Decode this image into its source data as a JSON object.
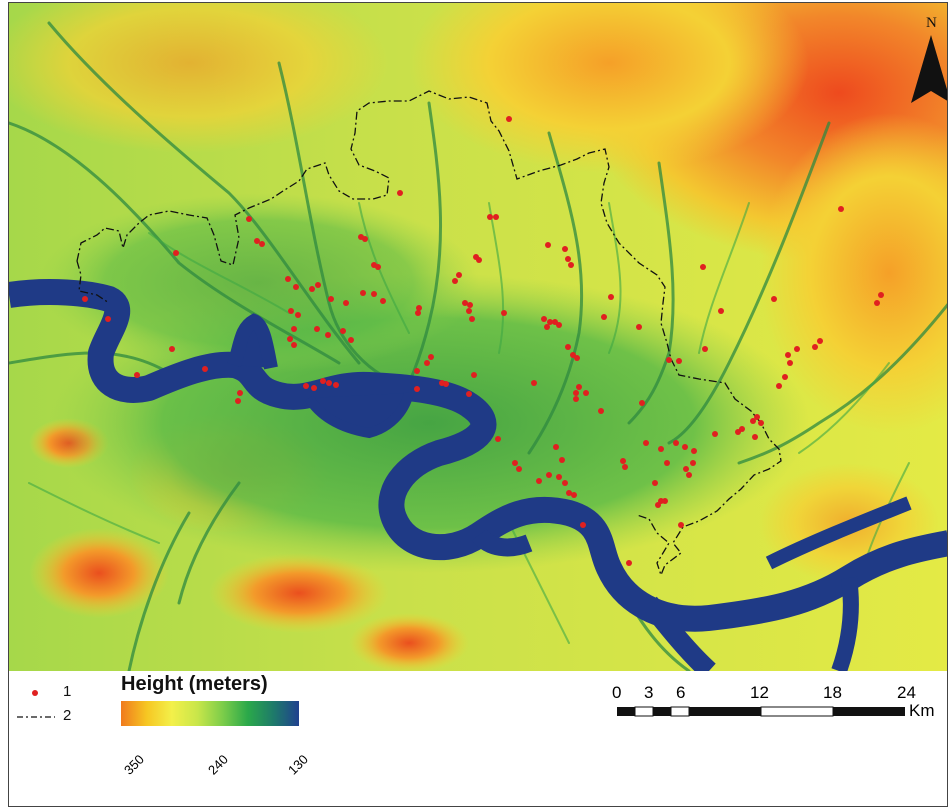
{
  "north_arrow": {
    "label": "N"
  },
  "legend": {
    "items": [
      {
        "symbol": "red-dot",
        "label": "1"
      },
      {
        "symbol": "dash-dot-line",
        "label": "2"
      }
    ],
    "height_title": "Height (meters)",
    "height_ticks": [
      "350",
      "240",
      "130"
    ],
    "height_gradient_colors": [
      "#f07a1e",
      "#f6c622",
      "#f3f04a",
      "#c9e64a",
      "#7ccd4a",
      "#2aa84a",
      "#1e7a6a",
      "#20418f"
    ]
  },
  "scale_bar": {
    "labels": [
      "0",
      "3",
      "6",
      "12",
      "18",
      "24"
    ],
    "unit": "Km"
  },
  "colors": {
    "high": "#ee5a1f",
    "mid": "#e9ef3f",
    "low": "#2e9a3c",
    "river": "#1f3a86",
    "points": "#e02020"
  }
}
